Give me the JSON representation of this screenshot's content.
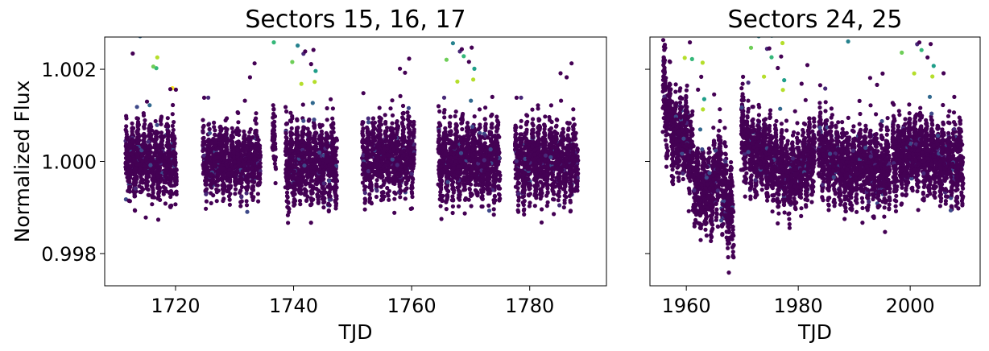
{
  "chart_data": [
    {
      "type": "scatter",
      "title": "Sectors 15, 16, 17",
      "xlabel": "TJD",
      "ylabel": "Normalized Flux",
      "xlim": [
        1708,
        1793
      ],
      "ylim": [
        0.9973,
        1.0027
      ],
      "xticks": [
        1720,
        1740,
        1760,
        1780
      ],
      "xtick_labels": [
        "1720",
        "1740",
        "1760",
        "1780"
      ],
      "yticks": [
        0.998,
        1.0,
        1.002
      ],
      "ytick_labels": [
        "0.998",
        "1.000",
        "1.002"
      ],
      "grid": false,
      "colormap": "viridis",
      "marker_color": "#440154",
      "segments": [
        {
          "x": [
            1711.5,
            1720.2
          ],
          "center": 1.0,
          "spread": 0.00078
        },
        {
          "x": [
            1724.6,
            1734.4
          ],
          "center": 1.0,
          "spread": 0.0007
        },
        {
          "x": [
            1736.4,
            1737.0
          ],
          "center": 1.0003,
          "spread": 0.0007
        },
        {
          "x": [
            1738.6,
            1747.4
          ],
          "center": 0.99995,
          "spread": 0.00085
        },
        {
          "x": [
            1751.6,
            1760.5
          ],
          "center": 1.0001,
          "spread": 0.00078
        },
        {
          "x": [
            1764.5,
            1775.0
          ],
          "center": 1.0,
          "spread": 0.00082
        },
        {
          "x": [
            1777.5,
            1788.2
          ],
          "center": 1.0,
          "spread": 0.00078
        }
      ]
    },
    {
      "type": "scatter",
      "title": "Sectors 24, 25",
      "xlabel": "TJD",
      "ylabel": "",
      "xlim": [
        1953.5,
        2012.5
      ],
      "ylim": [
        0.9973,
        1.0027
      ],
      "xticks": [
        1960,
        1980,
        2000
      ],
      "xtick_labels": [
        "1960",
        "1980",
        "2000"
      ],
      "yticks": [
        0.998,
        1.0,
        1.002
      ],
      "ytick_labels": [],
      "grid": false,
      "colormap": "viridis",
      "marker_color": "#440154",
      "segments": [
        {
          "x": [
            1955.8,
            1968.5
          ],
          "trend": [
            [
              1955.8,
              1.0015
            ],
            [
              1958.0,
              1.0006
            ],
            [
              1960.0,
              1.0005
            ],
            [
              1962.0,
              0.9994
            ],
            [
              1964.0,
              0.9993
            ],
            [
              1966.0,
              0.9998
            ],
            [
              1967.5,
              0.999
            ],
            [
              1968.5,
              0.9988
            ]
          ],
          "spread": 0.0009
        },
        {
          "x": [
            1969.8,
            1983.0
          ],
          "trend": [
            [
              1969.8,
              1.0005
            ],
            [
              1972.0,
              1.0002
            ],
            [
              1974.0,
              1.0001
            ],
            [
              1976.0,
              0.9999
            ],
            [
              1978.0,
              0.9997
            ],
            [
              1980.0,
              0.9998
            ],
            [
              1983.0,
              1.0001
            ]
          ],
          "spread": 0.0008
        },
        {
          "x": [
            1983.6,
            1996.4
          ],
          "trend": [
            [
              1983.6,
              1.0003
            ],
            [
              1986.0,
              1.0001
            ],
            [
              1988.0,
              0.9998
            ],
            [
              1990.0,
              0.9999
            ],
            [
              1993.0,
              0.9999
            ],
            [
              1996.4,
              0.9997
            ]
          ],
          "spread": 0.0008
        },
        {
          "x": [
            1996.8,
            2009.5
          ],
          "trend": [
            [
              1996.8,
              1.0001
            ],
            [
              2000.0,
              1.0002
            ],
            [
              2003.0,
              1.0001
            ],
            [
              2006.0,
              1.0
            ],
            [
              2009.5,
              1.0
            ]
          ],
          "spread": 0.0008
        }
      ]
    }
  ]
}
